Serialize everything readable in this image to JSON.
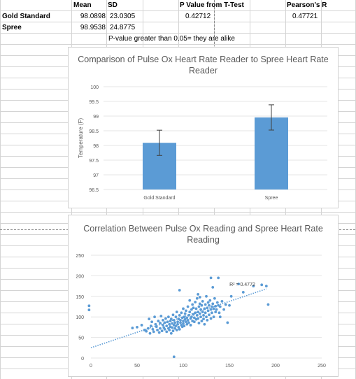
{
  "sheet": {
    "headers": {
      "mean": "Mean",
      "sd": "SD",
      "pvalue": "P Value from T-Test",
      "pearson": "Pearson's R"
    },
    "rows": [
      {
        "label": "Gold Standard",
        "mean": "98.0898",
        "sd": "23.0305",
        "pvalue": "0.42712",
        "pearson": "0.47721"
      },
      {
        "label": "Spree",
        "mean": "98.9538",
        "sd": "24.8775"
      }
    ],
    "note": "P-value greater than 0.05= they are alike"
  },
  "chart_data": [
    {
      "type": "bar",
      "title": "Comparison of Pulse Ox Heart Rate Reader to Spree Heart Rate Reader",
      "ylabel": "Temperature (F)",
      "xlabel": "",
      "categories": [
        "Gold Standard",
        "Spree"
      ],
      "values": [
        98.0898,
        98.9538
      ],
      "error": [
        0.43,
        0.43
      ],
      "ylim": [
        96.5,
        100
      ],
      "yticks": [
        "96.5",
        "97",
        "97.5",
        "98",
        "98.5",
        "99",
        "99.5",
        "100"
      ],
      "grid": true,
      "color": "#5b9bd5"
    },
    {
      "type": "scatter",
      "title": "Correlation Between Pulse Ox Reading and Spree Heart Rate Reading",
      "xlim": [
        0,
        250
      ],
      "ylim": [
        0,
        250
      ],
      "xticks": [
        "0",
        "50",
        "100",
        "150",
        "200",
        "250"
      ],
      "yticks": [
        "0",
        "50",
        "100",
        "150",
        "200",
        "250"
      ],
      "trendline": {
        "r2_label": "R² = 0.4772",
        "from": [
          0,
          25
        ],
        "to": [
          190,
          168
        ]
      },
      "grid": true,
      "color": "#5b9bd5",
      "points": [
        [
          -2,
          127
        ],
        [
          -2,
          117
        ],
        [
          45,
          73
        ],
        [
          50,
          75
        ],
        [
          55,
          80
        ],
        [
          58,
          68
        ],
        [
          60,
          65
        ],
        [
          62,
          72
        ],
        [
          63,
          95
        ],
        [
          64,
          60
        ],
        [
          65,
          78
        ],
        [
          66,
          88
        ],
        [
          67,
          70
        ],
        [
          68,
          64
        ],
        [
          69,
          100
        ],
        [
          70,
          82
        ],
        [
          71,
          76
        ],
        [
          72,
          68
        ],
        [
          73,
          90
        ],
        [
          74,
          62
        ],
        [
          75,
          85
        ],
        [
          75,
          72
        ],
        [
          76,
          102
        ],
        [
          77,
          66
        ],
        [
          78,
          80
        ],
        [
          78,
          92
        ],
        [
          79,
          74
        ],
        [
          80,
          70
        ],
        [
          80,
          86
        ],
        [
          81,
          96
        ],
        [
          82,
          78
        ],
        [
          82,
          64
        ],
        [
          83,
          88
        ],
        [
          84,
          72
        ],
        [
          84,
          100
        ],
        [
          85,
          82
        ],
        [
          85,
          68
        ],
        [
          86,
          90
        ],
        [
          86,
          76
        ],
        [
          87,
          60
        ],
        [
          87,
          95
        ],
        [
          88,
          84
        ],
        [
          88,
          74
        ],
        [
          89,
          105
        ],
        [
          89,
          66
        ],
        [
          90,
          80
        ],
        [
          90,
          92
        ],
        [
          90,
          3
        ],
        [
          91,
          72
        ],
        [
          91,
          86
        ],
        [
          92,
          100
        ],
        [
          92,
          78
        ],
        [
          93,
          112
        ],
        [
          93,
          68
        ],
        [
          94,
          88
        ],
        [
          94,
          82
        ],
        [
          95,
          75
        ],
        [
          95,
          95
        ],
        [
          96,
          104
        ],
        [
          96,
          70
        ],
        [
          97,
          86
        ],
        [
          97,
          92
        ],
        [
          98,
          80
        ],
        [
          98,
          110
        ],
        [
          99,
          76
        ],
        [
          99,
          98
        ],
        [
          100,
          90
        ],
        [
          100,
          84
        ],
        [
          100,
          120
        ],
        [
          101,
          100
        ],
        [
          101,
          78
        ],
        [
          102,
          94
        ],
        [
          102,
          108
        ],
        [
          103,
          88
        ],
        [
          103,
          115
        ],
        [
          104,
          82
        ],
        [
          104,
          98
        ],
        [
          105,
          125
        ],
        [
          105,
          92
        ],
        [
          106,
          104
        ],
        [
          106,
          86
        ],
        [
          107,
          112
        ],
        [
          107,
          140
        ],
        [
          108,
          96
        ],
        [
          108,
          80
        ],
        [
          109,
          118
        ],
        [
          109,
          100
        ],
        [
          110,
          90
        ],
        [
          110,
          130
        ],
        [
          111,
          106
        ],
        [
          111,
          122
        ],
        [
          112,
          98
        ],
        [
          112,
          88
        ],
        [
          113,
          110
        ],
        [
          113,
          136
        ],
        [
          114,
          94
        ],
        [
          114,
          120
        ],
        [
          115,
          104
        ],
        [
          115,
          145
        ],
        [
          116,
          112
        ],
        [
          116,
          96
        ],
        [
          117,
          125
        ],
        [
          117,
          85
        ],
        [
          118,
          108
        ],
        [
          118,
          132
        ],
        [
          119,
          100
        ],
        [
          119,
          118
        ],
        [
          120,
          90
        ],
        [
          120,
          128
        ],
        [
          121,
          112
        ],
        [
          121,
          138
        ],
        [
          122,
          104
        ],
        [
          122,
          95
        ],
        [
          123,
          120
        ],
        [
          123,
          82
        ],
        [
          124,
          130
        ],
        [
          124,
          110
        ],
        [
          125,
          100
        ],
        [
          125,
          150
        ],
        [
          126,
          122
        ],
        [
          126,
          92
        ],
        [
          127,
          135
        ],
        [
          127,
          115
        ],
        [
          128,
          105
        ],
        [
          128,
          128
        ],
        [
          129,
          140
        ],
        [
          130,
          118
        ],
        [
          130,
          96
        ],
        [
          131,
          125
        ],
        [
          131,
          110
        ],
        [
          132,
          132
        ],
        [
          133,
          120
        ],
        [
          133,
          100
        ],
        [
          134,
          145
        ],
        [
          135,
          126
        ],
        [
          135,
          112
        ],
        [
          136,
          118
        ],
        [
          137,
          135
        ],
        [
          138,
          128
        ],
        [
          139,
          110
        ],
        [
          140,
          125
        ],
        [
          140,
          100
        ],
        [
          142,
          138
        ],
        [
          144,
          118
        ],
        [
          146,
          130
        ],
        [
          148,
          86
        ],
        [
          150,
          128
        ],
        [
          152,
          150
        ],
        [
          96,
          165
        ],
        [
          130,
          195
        ],
        [
          132,
          172
        ],
        [
          138,
          195
        ],
        [
          116,
          155
        ],
        [
          118,
          148
        ],
        [
          165,
          160
        ],
        [
          160,
          180
        ],
        [
          185,
          178
        ],
        [
          190,
          175
        ],
        [
          192,
          130
        ],
        [
          176,
          175
        ]
      ]
    }
  ]
}
